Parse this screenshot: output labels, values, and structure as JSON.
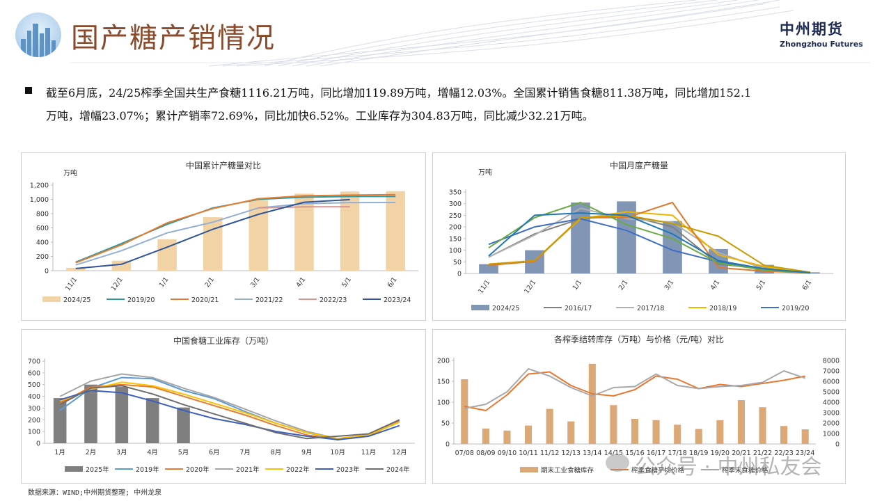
{
  "header": {
    "title": "国产糖产销情况",
    "brand_cn": "中州期货",
    "brand_en": "Zhongzhou Futures"
  },
  "summary": {
    "line1": "截至6月底，24/25榨季全国共生产食糖1116.21万吨，同比增加119.89万吨，增幅12.03%。全国累计销售食糖811.38万吨，同比增加152.1",
    "line2": "万吨，增幅23.07%；累计产销率72.69%，同比加快6.52%。工业库存为304.83万吨，同比减少32.21万吨。"
  },
  "footer": {
    "source": "数据来源：WIND;中州期货整理; 中州龙泉",
    "watermark": "公众号 · 中州私友会"
  },
  "chart_data": [
    {
      "id": "c1",
      "type": "bar+line",
      "title": "中国累计产糖量对比",
      "unit": "万吨",
      "categories": [
        "11/1",
        "12/1",
        "1/1",
        "2/1",
        "3/1",
        "4/1",
        "5/1",
        "6/1"
      ],
      "ylim": [
        0,
        1200
      ],
      "yticks": [
        0,
        200,
        400,
        600,
        800,
        1000,
        1200
      ],
      "ytick_labels": [
        "0",
        "200",
        "400",
        "600",
        "800",
        "1,000",
        "1,200"
      ],
      "bars": {
        "name": "2024/25",
        "color": "#f2d3a6",
        "values": [
          40,
          140,
          440,
          750,
          990,
          1080,
          1110,
          1116
        ]
      },
      "series": [
        {
          "name": "2019/20",
          "color": "#2a9aa6",
          "values": [
            120,
            380,
            650,
            880,
            1000,
            1030,
            1040,
            1040
          ]
        },
        {
          "name": "2020/21",
          "color": "#e87b2d",
          "values": [
            110,
            360,
            670,
            870,
            1010,
            1050,
            1060,
            1066
          ]
        },
        {
          "name": "2021/22",
          "color": "#93afd6",
          "values": [
            80,
            280,
            530,
            680,
            880,
            940,
            955,
            956
          ]
        },
        {
          "name": "2022/23",
          "color": "#d99590",
          "values": [
            null,
            null,
            null,
            null,
            880,
            895,
            897,
            null
          ]
        },
        {
          "name": "2023/24",
          "color": "#2f5597",
          "values": [
            30,
            90,
            330,
            580,
            790,
            960,
            996,
            null
          ]
        }
      ]
    },
    {
      "id": "c2",
      "type": "bar+line",
      "title": "中国月度产糖量",
      "unit": "万吨",
      "categories": [
        "11/1",
        "12/1",
        "1/1",
        "2/1",
        "3/1",
        "4/1",
        "5/1",
        "6/1"
      ],
      "ylim": [
        0,
        350
      ],
      "yticks": [
        0,
        50,
        100,
        150,
        200,
        250,
        300,
        350
      ],
      "ytick_labels": [
        "0",
        "50",
        "100",
        "150",
        "200",
        "250",
        "300",
        "350"
      ],
      "bars": {
        "name": "2024/25",
        "color": "#8096b4",
        "values": [
          40,
          100,
          305,
          310,
          225,
          105,
          37,
          5
        ]
      },
      "series": [
        {
          "name": "2016/17",
          "color": "#808080",
          "values": [
            70,
            170,
            235,
            250,
            200,
            40,
            20,
            5
          ]
        },
        {
          "name": "2017/18",
          "color": "#b0b0b0",
          "values": [
            70,
            165,
            280,
            235,
            220,
            90,
            20,
            5
          ]
        },
        {
          "name": "2018/19",
          "color": "#f0b400",
          "values": [
            35,
            55,
            235,
            265,
            250,
            80,
            30,
            3
          ]
        },
        {
          "name": "2019/20",
          "color": "#3f6fc4",
          "values": [
            125,
            200,
            235,
            185,
            100,
            50,
            15,
            2
          ]
        },
        {
          "name": "_s5",
          "color": "#e0782c",
          "values": [
            35,
            52,
            240,
            240,
            305,
            25,
            10,
            2
          ]
        },
        {
          "name": "_s6",
          "color": "#6aaa44",
          "values": [
            110,
            240,
            305,
            210,
            150,
            45,
            15,
            2
          ]
        },
        {
          "name": "_s7",
          "color": "#c89b00",
          "values": [
            40,
            55,
            240,
            250,
            215,
            160,
            35,
            5
          ]
        },
        {
          "name": "_s8",
          "color": "#1f77b4",
          "values": [
            75,
            250,
            260,
            250,
            170,
            55,
            20,
            3
          ]
        }
      ]
    },
    {
      "id": "c3",
      "type": "bar+line",
      "title": "中国食糖工业库存（万吨）",
      "categories": [
        "1月",
        "2月",
        "3月",
        "4月",
        "5月",
        "6月",
        "7月",
        "8月",
        "9月",
        "10月",
        "11月",
        "12月"
      ],
      "ylim": [
        0,
        700
      ],
      "yticks": [
        0,
        100,
        200,
        300,
        400,
        500,
        600,
        700
      ],
      "ytick_labels": [
        "0",
        "100",
        "200",
        "300",
        "400",
        "500",
        "600",
        "700"
      ],
      "bars": {
        "name": "2025年",
        "color": "#7f7f7f",
        "values": [
          385,
          500,
          480,
          385,
          305,
          null,
          null,
          null,
          null,
          null,
          null,
          null
        ]
      },
      "series": [
        {
          "name": "2019年",
          "color": "#5b9bd5",
          "values": [
            280,
            470,
            560,
            550,
            450,
            380,
            270,
            170,
            90,
            30,
            70,
            190
          ]
        },
        {
          "name": "2020年",
          "color": "#e87b2d",
          "values": [
            340,
            480,
            500,
            480,
            400,
            320,
            240,
            150,
            70,
            30,
            60,
            190
          ]
        },
        {
          "name": "2021年",
          "color": "#a5a5a5",
          "values": [
            400,
            530,
            590,
            560,
            470,
            390,
            290,
            190,
            100,
            40,
            70,
            200
          ]
        },
        {
          "name": "2022年",
          "color": "#ffc000",
          "values": [
            360,
            460,
            520,
            490,
            420,
            340,
            260,
            170,
            90,
            40,
            70,
            180
          ]
        },
        {
          "name": "2023年",
          "color": "#3b5fc0",
          "values": [
            370,
            450,
            430,
            360,
            280,
            210,
            160,
            100,
            60,
            30,
            60,
            150
          ]
        },
        {
          "name": "2024年",
          "color": "#6d6d6d",
          "values": [
            330,
            470,
            490,
            420,
            330,
            250,
            170,
            90,
            40,
            60,
            80,
            200
          ]
        }
      ]
    },
    {
      "id": "c4",
      "type": "bar+line dual-axis",
      "title": "各榨季结转库存（万吨）与价格（元/吨）对比",
      "categories": [
        "07/08",
        "08/09",
        "09/10",
        "10/11",
        "11/12",
        "12/13",
        "13/14",
        "14/15",
        "15/16",
        "16/17",
        "17/18",
        "18/19",
        "19/20",
        "20/21",
        "21/22",
        "22/23",
        "23/24"
      ],
      "ylim": [
        0,
        200
      ],
      "yticks": [
        0,
        50,
        100,
        150,
        200
      ],
      "ytick_labels": [
        "0",
        "50",
        "100",
        "150",
        "200"
      ],
      "y2lim": [
        0,
        8000
      ],
      "y2ticks": [
        0,
        1000,
        2000,
        3000,
        4000,
        5000,
        6000,
        7000,
        8000
      ],
      "y2tick_labels": [
        "0",
        "1000",
        "2000",
        "3000",
        "4000",
        "5000",
        "6000",
        "7000",
        "8000"
      ],
      "bars": {
        "name": "期末工业食糖库存",
        "color": "#dba878",
        "values": [
          155,
          37,
          32,
          44,
          84,
          54,
          192,
          93,
          60,
          57,
          46,
          36,
          57,
          105,
          88,
          43,
          35
        ]
      },
      "series": [
        {
          "name": "榨季食糖平均价格",
          "color": "#e8772e",
          "axis": "right",
          "values": [
            3600,
            3200,
            4700,
            6700,
            6900,
            5600,
            4800,
            4600,
            5200,
            6500,
            6200,
            5300,
            5700,
            5500,
            5800,
            6100,
            6500
          ]
        },
        {
          "name": "榨季末食糖价格",
          "color": "#a8a8a8",
          "axis": "right",
          "values": [
            3400,
            3800,
            5000,
            7200,
            6500,
            5400,
            4600,
            5400,
            5500,
            6700,
            5600,
            5300,
            5500,
            5600,
            5900,
            7000,
            6300
          ]
        }
      ]
    }
  ]
}
